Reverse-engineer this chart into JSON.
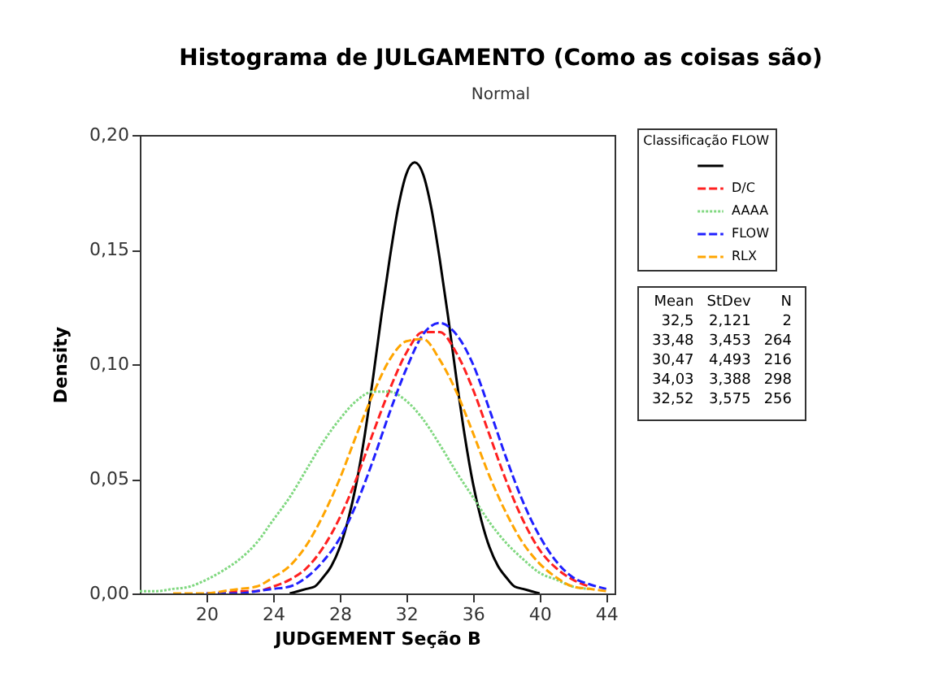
{
  "chart_data": {
    "type": "line",
    "title": "Histograma de JULGAMENTO (Como as coisas são)",
    "subtitle": "Normal",
    "xlabel": "JUDGEMENT Seção B",
    "ylabel": "Density",
    "legend_title": "Classificação FLOW",
    "legend": "right",
    "grid": false,
    "xlim": [
      16,
      44.5
    ],
    "xticks": [
      20,
      24,
      28,
      32,
      36,
      40,
      44
    ],
    "ylim": [
      0,
      0.2
    ],
    "yticks": [
      {
        "value": 0,
        "label": "0,00"
      },
      {
        "value": 0.05,
        "label": "0,05"
      },
      {
        "value": 0.1,
        "label": "0,10"
      },
      {
        "value": 0.15,
        "label": "0,15"
      },
      {
        "value": 0.2,
        "label": "0,20"
      }
    ],
    "annotations": [
      "Mean",
      "StDev",
      "N",
      "32,5",
      "2,121",
      "2",
      "33,48",
      "3,453",
      "264",
      "30,47",
      "4,493",
      "216",
      "34,03",
      "3,388",
      "298",
      "32,52",
      "3,575",
      "256"
    ],
    "series": [
      {
        "color": "#000000",
        "line_style": "solid",
        "x": [
          25,
          25.5,
          26,
          26.5,
          27,
          27.5,
          28,
          28.5,
          29,
          29.5,
          30,
          30.5,
          31,
          31.5,
          32,
          32.5,
          33,
          33.5,
          34,
          34.5,
          35,
          35.5,
          36,
          36.5,
          37,
          37.5,
          38,
          38.5,
          39,
          39.5,
          40
        ],
        "values": [
          0.0,
          0.001,
          0.002,
          0.003,
          0.007,
          0.012,
          0.02,
          0.032,
          0.048,
          0.069,
          0.094,
          0.121,
          0.146,
          0.168,
          0.183,
          0.188,
          0.183,
          0.168,
          0.146,
          0.121,
          0.094,
          0.069,
          0.048,
          0.032,
          0.02,
          0.012,
          0.007,
          0.003,
          0.002,
          0.001,
          0.0
        ]
      },
      {
        "name": "D/C",
        "color": "#ff2020",
        "line_style": "dashed",
        "x": [
          20,
          21,
          22,
          23,
          24,
          25,
          26,
          27,
          28,
          29,
          30,
          31,
          32,
          33,
          34,
          35,
          36,
          37,
          38,
          39,
          40,
          41,
          42,
          43
        ],
        "values": [
          0.0,
          0.0,
          0.001,
          0.001,
          0.003,
          0.006,
          0.011,
          0.02,
          0.033,
          0.05,
          0.07,
          0.089,
          0.105,
          0.114,
          0.114,
          0.105,
          0.089,
          0.069,
          0.049,
          0.032,
          0.019,
          0.011,
          0.006,
          0.003
        ]
      },
      {
        "name": "AAAA",
        "color": "#80d880",
        "line_style": "dotted",
        "x": [
          16,
          17,
          18,
          19,
          20,
          21,
          22,
          23,
          24,
          25,
          26,
          27,
          28,
          29,
          30,
          31,
          32,
          33,
          34,
          35,
          36,
          37,
          38,
          39,
          40,
          41,
          42,
          43
        ],
        "values": [
          0.001,
          0.001,
          0.002,
          0.003,
          0.006,
          0.01,
          0.015,
          0.022,
          0.032,
          0.042,
          0.054,
          0.066,
          0.076,
          0.084,
          0.088,
          0.088,
          0.084,
          0.076,
          0.065,
          0.053,
          0.042,
          0.031,
          0.022,
          0.015,
          0.009,
          0.006,
          0.003,
          0.002
        ]
      },
      {
        "name": "FLOW",
        "color": "#2020ff",
        "line_style": "dashed",
        "x": [
          20,
          21,
          22,
          23,
          24,
          25,
          26,
          27,
          28,
          29,
          30,
          31,
          32,
          33,
          34,
          35,
          36,
          37,
          38,
          39,
          40,
          41,
          42,
          43,
          44
        ],
        "values": [
          0.0,
          0.0,
          0.0,
          0.001,
          0.002,
          0.003,
          0.007,
          0.014,
          0.024,
          0.039,
          0.058,
          0.079,
          0.098,
          0.113,
          0.118,
          0.113,
          0.1,
          0.08,
          0.059,
          0.04,
          0.025,
          0.014,
          0.007,
          0.004,
          0.002
        ]
      },
      {
        "name": "RLX",
        "color": "#ffa500",
        "line_style": "dashed",
        "x": [
          18,
          19,
          20,
          21,
          22,
          23,
          24,
          25,
          26,
          27,
          28,
          29,
          30,
          31,
          32,
          33,
          34,
          35,
          36,
          37,
          38,
          39,
          40,
          41,
          42,
          43,
          44
        ],
        "values": [
          0.0,
          0.0,
          0.0,
          0.001,
          0.002,
          0.003,
          0.007,
          0.012,
          0.021,
          0.034,
          0.05,
          0.069,
          0.087,
          0.102,
          0.11,
          0.111,
          0.102,
          0.088,
          0.07,
          0.051,
          0.035,
          0.022,
          0.013,
          0.007,
          0.003,
          0.002,
          0.001
        ]
      }
    ]
  }
}
